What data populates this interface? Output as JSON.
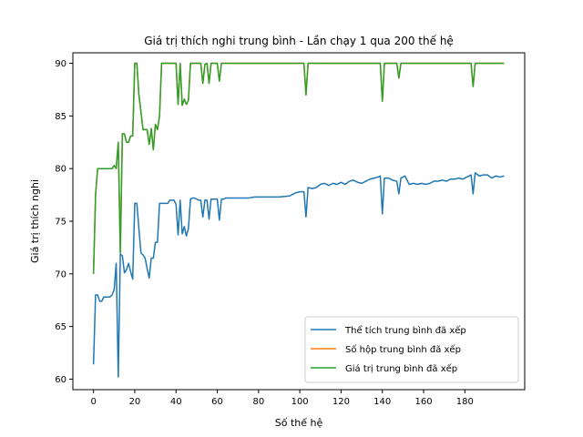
{
  "chart_data": {
    "type": "line",
    "title": "Giá trị thích nghi trung bình - Lần chạy 1 qua 200 thế hệ",
    "xlabel": "Số thế hệ",
    "ylabel": "Giá trị thích nghi",
    "xlim": [
      -10,
      209
    ],
    "ylim": [
      59,
      91
    ],
    "xticks": [
      0,
      20,
      40,
      60,
      80,
      100,
      120,
      140,
      160,
      180
    ],
    "yticks": [
      60,
      65,
      70,
      75,
      80,
      85,
      90
    ],
    "grid": false,
    "legend_position": "lower-right",
    "series": [
      {
        "name": "Thể tích trung bình đã xếp",
        "color": "#1f77b4",
        "points": [
          [
            0,
            61.4
          ],
          [
            1,
            68
          ],
          [
            2,
            68
          ],
          [
            3,
            67.4
          ],
          [
            4,
            67.4
          ],
          [
            5,
            67.8
          ],
          [
            6,
            67.8
          ],
          [
            7,
            67.8
          ],
          [
            8,
            67.8
          ],
          [
            9,
            68
          ],
          [
            10,
            68.5
          ],
          [
            11,
            71
          ],
          [
            12,
            60.2
          ],
          [
            13,
            71.9
          ],
          [
            14,
            71.7
          ],
          [
            15,
            70.1
          ],
          [
            16,
            70.4
          ],
          [
            17,
            71
          ],
          [
            18,
            70.2
          ],
          [
            19,
            69.5
          ],
          [
            20,
            76.7
          ],
          [
            21,
            76.7
          ],
          [
            22,
            74.3
          ],
          [
            23,
            72
          ],
          [
            24,
            71.8
          ],
          [
            25,
            71.5
          ],
          [
            26,
            70.5
          ],
          [
            27,
            69.6
          ],
          [
            28,
            71.5
          ],
          [
            29,
            71.5
          ],
          [
            30,
            73
          ],
          [
            31,
            73
          ],
          [
            32,
            76.7
          ],
          [
            33,
            76.7
          ],
          [
            34,
            76.7
          ],
          [
            35,
            76.7
          ],
          [
            36,
            76.7
          ],
          [
            37,
            77
          ],
          [
            38,
            77
          ],
          [
            39,
            77
          ],
          [
            40,
            76.6
          ],
          [
            41,
            73.7
          ],
          [
            42,
            77
          ],
          [
            43,
            73.8
          ],
          [
            44,
            74.5
          ],
          [
            45,
            73.6
          ],
          [
            46,
            74.3
          ],
          [
            47,
            77.1
          ],
          [
            48,
            77.2
          ],
          [
            49,
            77.2
          ],
          [
            50,
            77.1
          ],
          [
            51,
            77
          ],
          [
            52,
            77
          ],
          [
            53,
            75.4
          ],
          [
            54,
            77
          ],
          [
            55,
            77
          ],
          [
            56,
            75.2
          ],
          [
            57,
            77.1
          ],
          [
            58,
            77.1
          ],
          [
            59,
            77.1
          ],
          [
            60,
            77.1
          ],
          [
            61,
            75.1
          ],
          [
            62,
            77.1
          ],
          [
            63,
            77.1
          ],
          [
            64,
            77.2
          ],
          [
            70,
            77.2
          ],
          [
            75,
            77.2
          ],
          [
            78,
            77.3
          ],
          [
            85,
            77.3
          ],
          [
            90,
            77.3
          ],
          [
            95,
            77.4
          ],
          [
            98,
            77.7
          ],
          [
            100,
            77.8
          ],
          [
            102,
            77.8
          ],
          [
            103,
            75.4
          ],
          [
            104,
            78.2
          ],
          [
            106,
            78.1
          ],
          [
            108,
            78.2
          ],
          [
            110,
            78.5
          ],
          [
            112,
            78.6
          ],
          [
            114,
            78.4
          ],
          [
            116,
            78.6
          ],
          [
            118,
            78.5
          ],
          [
            120,
            78.7
          ],
          [
            122,
            78.5
          ],
          [
            124,
            78.8
          ],
          [
            126,
            78.9
          ],
          [
            128,
            78.7
          ],
          [
            130,
            78.6
          ],
          [
            132,
            78.8
          ],
          [
            134,
            79
          ],
          [
            136,
            79.1
          ],
          [
            138,
            79.2
          ],
          [
            139,
            79.3
          ],
          [
            140,
            75.7
          ],
          [
            141,
            79.1
          ],
          [
            143,
            79.1
          ],
          [
            145,
            78.9
          ],
          [
            147,
            78.8
          ],
          [
            148,
            77.6
          ],
          [
            149,
            79.1
          ],
          [
            151,
            79.3
          ],
          [
            152,
            78.9
          ],
          [
            153,
            78.5
          ],
          [
            155,
            78.6
          ],
          [
            157,
            78.5
          ],
          [
            159,
            78.6
          ],
          [
            161,
            78.5
          ],
          [
            163,
            78.6
          ],
          [
            165,
            78.8
          ],
          [
            167,
            78.8
          ],
          [
            169,
            78.9
          ],
          [
            171,
            78.8
          ],
          [
            173,
            79
          ],
          [
            175,
            79
          ],
          [
            177,
            79.1
          ],
          [
            179,
            79
          ],
          [
            181,
            79.2
          ],
          [
            183,
            79.4
          ],
          [
            184,
            77.6
          ],
          [
            185,
            79.6
          ],
          [
            187,
            79.3
          ],
          [
            189,
            79.4
          ],
          [
            191,
            79.4
          ],
          [
            193,
            79.1
          ],
          [
            195,
            79.3
          ],
          [
            197,
            79.2
          ],
          [
            199,
            79.3
          ]
        ]
      },
      {
        "name": "Số hộp trung bình đã xếp",
        "color": "#ff7f0e",
        "points": [
          [
            0,
            70
          ],
          [
            1,
            77.5
          ],
          [
            2,
            80
          ],
          [
            3,
            80
          ],
          [
            4,
            80
          ],
          [
            5,
            80
          ],
          [
            6,
            80
          ],
          [
            7,
            80
          ],
          [
            8,
            80
          ],
          [
            9,
            80
          ],
          [
            10,
            80.3
          ],
          [
            11,
            80
          ],
          [
            12,
            82.5
          ],
          [
            13,
            72
          ],
          [
            14,
            83.3
          ],
          [
            15,
            83.3
          ],
          [
            16,
            82.5
          ],
          [
            17,
            82.5
          ],
          [
            18,
            83.1
          ],
          [
            19,
            83.1
          ],
          [
            20,
            90
          ],
          [
            21,
            90
          ],
          [
            22,
            87
          ],
          [
            23,
            85.4
          ],
          [
            24,
            83.7
          ],
          [
            25,
            83.7
          ],
          [
            26,
            83.7
          ],
          [
            27,
            82.3
          ],
          [
            28,
            83.8
          ],
          [
            29,
            81.8
          ],
          [
            30,
            84.2
          ],
          [
            31,
            83.7
          ],
          [
            32,
            85
          ],
          [
            33,
            90
          ],
          [
            34,
            90
          ],
          [
            35,
            90
          ],
          [
            36,
            90
          ],
          [
            37,
            90
          ],
          [
            38,
            90
          ],
          [
            39,
            90
          ],
          [
            40,
            90
          ],
          [
            41,
            86.1
          ],
          [
            42,
            90
          ],
          [
            43,
            86
          ],
          [
            44,
            86.6
          ],
          [
            45,
            86.1
          ],
          [
            46,
            86.5
          ],
          [
            47,
            90
          ],
          [
            48,
            90
          ],
          [
            49,
            90
          ],
          [
            50,
            90
          ],
          [
            51,
            90
          ],
          [
            52,
            90
          ],
          [
            53,
            88.1
          ],
          [
            54,
            89.9
          ],
          [
            55,
            90
          ],
          [
            56,
            88.1
          ],
          [
            57,
            90
          ],
          [
            58,
            90
          ],
          [
            59,
            90
          ],
          [
            60,
            90
          ],
          [
            61,
            88.3
          ],
          [
            62,
            90
          ],
          [
            70,
            90
          ],
          [
            80,
            90
          ],
          [
            90,
            90
          ],
          [
            100,
            90
          ],
          [
            102,
            90
          ],
          [
            103,
            87
          ],
          [
            104,
            90
          ],
          [
            110,
            90
          ],
          [
            120,
            90
          ],
          [
            130,
            90
          ],
          [
            138,
            90
          ],
          [
            139,
            90
          ],
          [
            140,
            86.4
          ],
          [
            141,
            90
          ],
          [
            145,
            90
          ],
          [
            147,
            90
          ],
          [
            148,
            88.6
          ],
          [
            149,
            90
          ],
          [
            160,
            90
          ],
          [
            170,
            90
          ],
          [
            180,
            90
          ],
          [
            183,
            90
          ],
          [
            184,
            87.8
          ],
          [
            185,
            90
          ],
          [
            190,
            90
          ],
          [
            199,
            90
          ]
        ]
      },
      {
        "name": "Giá trị trung bình đã xếp",
        "color": "#2ca02c",
        "points": [
          [
            0,
            70
          ],
          [
            1,
            77.5
          ],
          [
            2,
            80
          ],
          [
            3,
            80
          ],
          [
            4,
            80
          ],
          [
            5,
            80
          ],
          [
            6,
            80
          ],
          [
            7,
            80
          ],
          [
            8,
            80
          ],
          [
            9,
            80
          ],
          [
            10,
            80.3
          ],
          [
            11,
            80
          ],
          [
            12,
            82.5
          ],
          [
            13,
            72
          ],
          [
            14,
            83.3
          ],
          [
            15,
            83.3
          ],
          [
            16,
            82.5
          ],
          [
            17,
            82.5
          ],
          [
            18,
            83.1
          ],
          [
            19,
            83.1
          ],
          [
            20,
            90
          ],
          [
            21,
            90
          ],
          [
            22,
            87
          ],
          [
            23,
            85.4
          ],
          [
            24,
            83.7
          ],
          [
            25,
            83.7
          ],
          [
            26,
            83.7
          ],
          [
            27,
            82.3
          ],
          [
            28,
            83.8
          ],
          [
            29,
            81.8
          ],
          [
            30,
            84.2
          ],
          [
            31,
            83.7
          ],
          [
            32,
            85
          ],
          [
            33,
            90
          ],
          [
            34,
            90
          ],
          [
            35,
            90
          ],
          [
            36,
            90
          ],
          [
            37,
            90
          ],
          [
            38,
            90
          ],
          [
            39,
            90
          ],
          [
            40,
            90
          ],
          [
            41,
            86.1
          ],
          [
            42,
            90
          ],
          [
            43,
            86
          ],
          [
            44,
            86.6
          ],
          [
            45,
            86.1
          ],
          [
            46,
            86.5
          ],
          [
            47,
            90
          ],
          [
            48,
            90
          ],
          [
            49,
            90
          ],
          [
            50,
            90
          ],
          [
            51,
            90
          ],
          [
            52,
            90
          ],
          [
            53,
            88.1
          ],
          [
            54,
            89.9
          ],
          [
            55,
            90
          ],
          [
            56,
            88.1
          ],
          [
            57,
            90
          ],
          [
            58,
            90
          ],
          [
            59,
            90
          ],
          [
            60,
            90
          ],
          [
            61,
            88.3
          ],
          [
            62,
            90
          ],
          [
            70,
            90
          ],
          [
            80,
            90
          ],
          [
            90,
            90
          ],
          [
            100,
            90
          ],
          [
            102,
            90
          ],
          [
            103,
            87
          ],
          [
            104,
            90
          ],
          [
            110,
            90
          ],
          [
            120,
            90
          ],
          [
            130,
            90
          ],
          [
            138,
            90
          ],
          [
            139,
            90
          ],
          [
            140,
            86.4
          ],
          [
            141,
            90
          ],
          [
            145,
            90
          ],
          [
            147,
            90
          ],
          [
            148,
            88.6
          ],
          [
            149,
            90
          ],
          [
            160,
            90
          ],
          [
            170,
            90
          ],
          [
            180,
            90
          ],
          [
            183,
            90
          ],
          [
            184,
            87.8
          ],
          [
            185,
            90
          ],
          [
            190,
            90
          ],
          [
            199,
            90
          ]
        ]
      }
    ]
  }
}
